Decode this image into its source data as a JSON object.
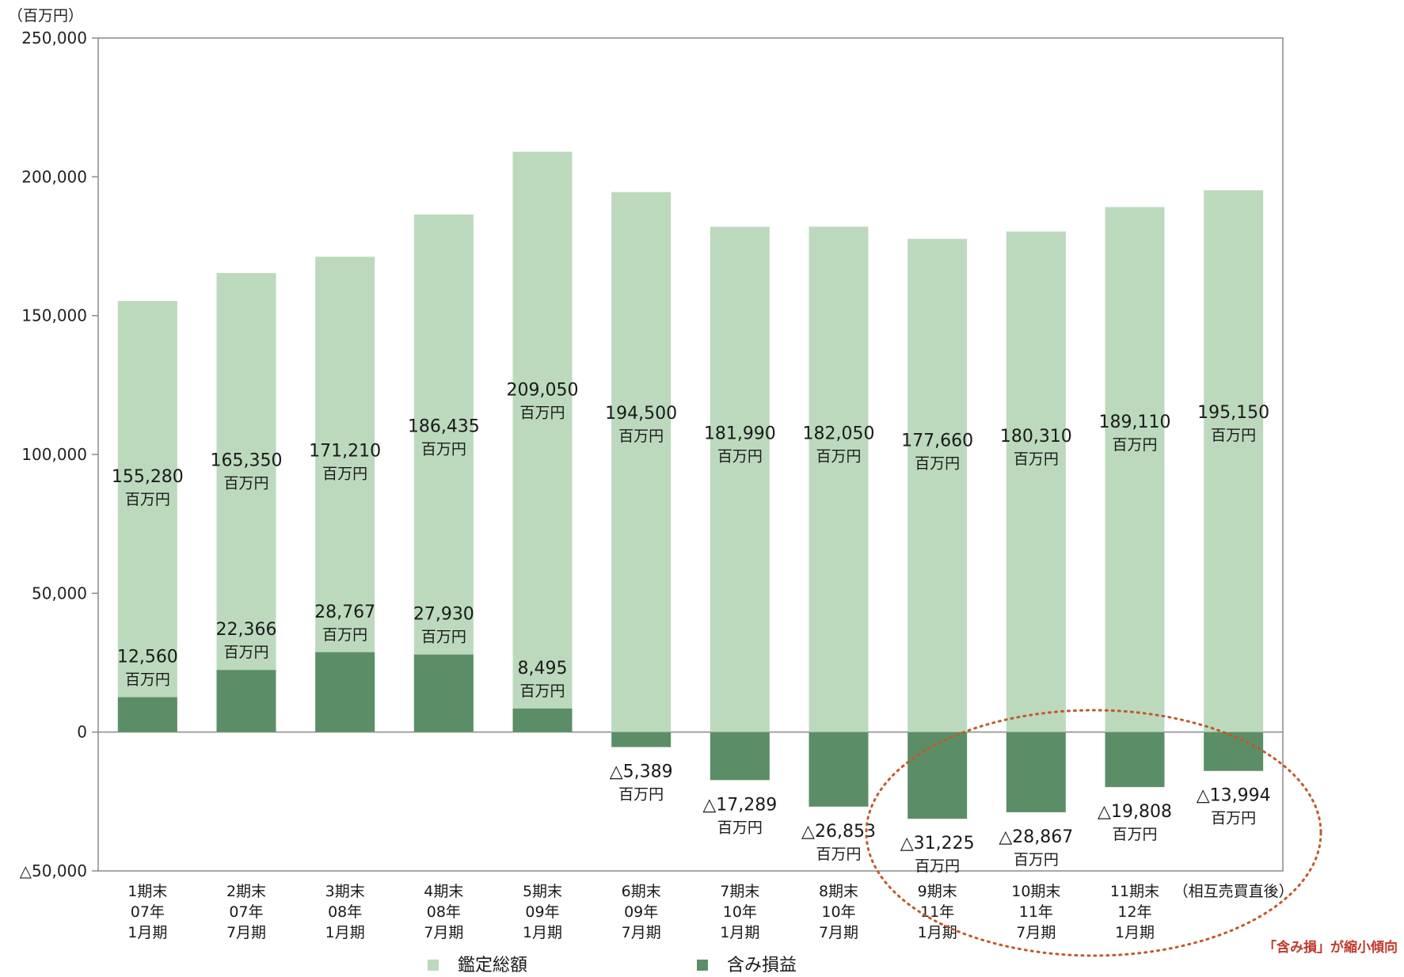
{
  "chart_data": {
    "type": "bar",
    "unit_label": "（百万円）",
    "value_suffix": "百万円",
    "negative_prefix": "△",
    "ylim": [
      -50000,
      250000
    ],
    "yticks": [
      250000,
      200000,
      150000,
      100000,
      50000,
      0,
      -50000
    ],
    "ytick_labels": [
      "250,000",
      "200,000",
      "150,000",
      "100,000",
      "50,000",
      "0",
      "△50,000"
    ],
    "categories": [
      [
        "1期末",
        "07年",
        "1月期"
      ],
      [
        "2期末",
        "07年",
        "7月期"
      ],
      [
        "3期末",
        "08年",
        "1月期"
      ],
      [
        "4期末",
        "08年",
        "7月期"
      ],
      [
        "5期末",
        "09年",
        "1月期"
      ],
      [
        "6期末",
        "09年",
        "7月期"
      ],
      [
        "7期末",
        "10年",
        "1月期"
      ],
      [
        "8期末",
        "10年",
        "7月期"
      ],
      [
        "9期末",
        "11年",
        "1月期"
      ],
      [
        "10期末",
        "11年",
        "7月期"
      ],
      [
        "11期末",
        "12年",
        "1月期"
      ],
      [
        "（相互売買直後）"
      ]
    ],
    "series": [
      {
        "name": "鑑定総額",
        "color": "#bcd9bd",
        "values": [
          155280,
          165350,
          171210,
          186435,
          209050,
          194500,
          181990,
          182050,
          177660,
          180310,
          189110,
          195150
        ],
        "labels": [
          "155,280",
          "165,350",
          "171,210",
          "186,435",
          "209,050",
          "194,500",
          "181,990",
          "182,050",
          "177,660",
          "180,310",
          "189,110",
          "195,150"
        ]
      },
      {
        "name": "含み損益",
        "color": "#5b8e66",
        "values": [
          12560,
          22366,
          28767,
          27930,
          8495,
          -5389,
          -17289,
          -26853,
          -31225,
          -28867,
          -19808,
          -13994
        ],
        "labels": [
          "12,560",
          "22,366",
          "28,767",
          "27,930",
          "8,495",
          "△5,389",
          "△17,289",
          "△26,853",
          "△31,225",
          "△28,867",
          "△19,808",
          "△13,994"
        ]
      }
    ],
    "annotation": "「含み損」が縮小傾向",
    "annotation_color": "#c0392b",
    "grid": false,
    "legend_position": "bottom"
  }
}
